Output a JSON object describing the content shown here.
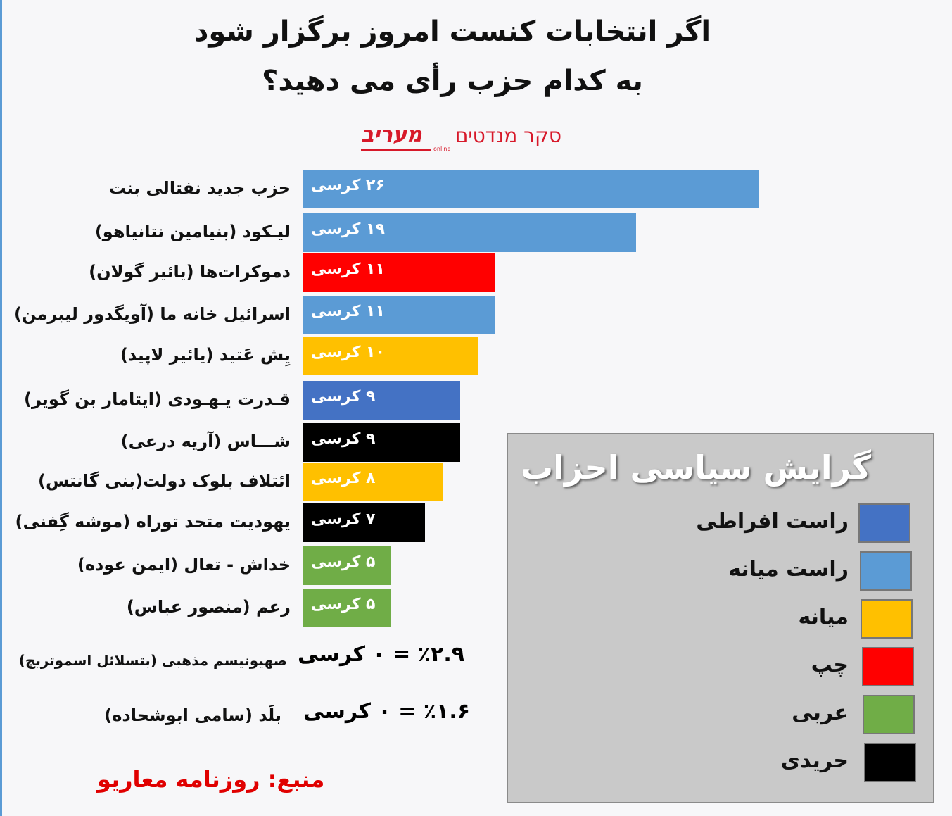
{
  "chart_data": {
    "type": "bar",
    "orientation": "horizontal",
    "title": "اگر انتخابات کنست امروز برگزار شود به کدام حزب رأی می دهید؟",
    "title_lines": [
      "اگر انتخابات کنست امروز برگزار شود",
      "به کدام حزب رأی می دهید؟"
    ],
    "logo": {
      "hebrew": "סקר מנדטים",
      "brand": "מעריב",
      "sub": "online"
    },
    "categories": [
      "حزب جدید نفتالی بنت",
      "لیـکود (بنیامین نتانیاهو)",
      "دموکرات‌ها (یائیر گولان)",
      "اسرائیل خانه ما (آویگدور لیبرمن)",
      "یِش عَتید (یائیر لاپید)",
      "قـدرت یـهـودی (ایتامار بن گویر)",
      "شـــاس (آریه درعی)",
      "ائتلاف بلوک دولت(بنی گانتس)",
      "یهودیت متحد توراه (موشه گِفنی)",
      "خداش - تعال (ایمن عوده)",
      "رعم (منصور عباس)"
    ],
    "values": [
      26,
      19,
      11,
      11,
      10,
      9,
      9,
      8,
      7,
      5,
      5
    ],
    "data_labels": [
      "۲۶ کرسی",
      "۱۹ کرسی",
      "۱۱ کرسی",
      "۱۱ کرسی",
      "۱۰ کرسی",
      "۹ کرسی",
      "۹ کرسی",
      "۸ کرسی",
      "۷ کرسی",
      "۵ کرسی",
      "۵ کرسی"
    ],
    "bar_colors": [
      "#5b9bd5",
      "#5b9bd5",
      "#ff0000",
      "#5b9bd5",
      "#ffc000",
      "#4472c4",
      "#000000",
      "#ffc000",
      "#000000",
      "#70ad47",
      "#70ad47"
    ],
    "below_threshold": [
      {
        "name": "صهیونیسم مذهبی (بتسلائل اسموتریچ)",
        "value": "٪۲.۹ = ۰ کرسی",
        "color": "#5b9bd5"
      },
      {
        "name": "بلَد (سامی ابوشحاده)",
        "value": "٪۱.۶ = ۰ کرسی",
        "color": "#e00000"
      }
    ],
    "source": "منبع: روزنامه معاریو",
    "legend": {
      "title": "گرایش سیاسی احزاب",
      "placement": "bottom-right",
      "items": [
        {
          "label": "راست افراطی",
          "color": "#4472c4"
        },
        {
          "label": "راست میانه",
          "color": "#5b9bd5"
        },
        {
          "label": "میانه",
          "color": "#ffc000"
        },
        {
          "label": "چپ",
          "color": "#ff0000"
        },
        {
          "label": "عربی",
          "color": "#70ad47"
        },
        {
          "label": "حریدی",
          "color": "#000000"
        }
      ]
    }
  }
}
